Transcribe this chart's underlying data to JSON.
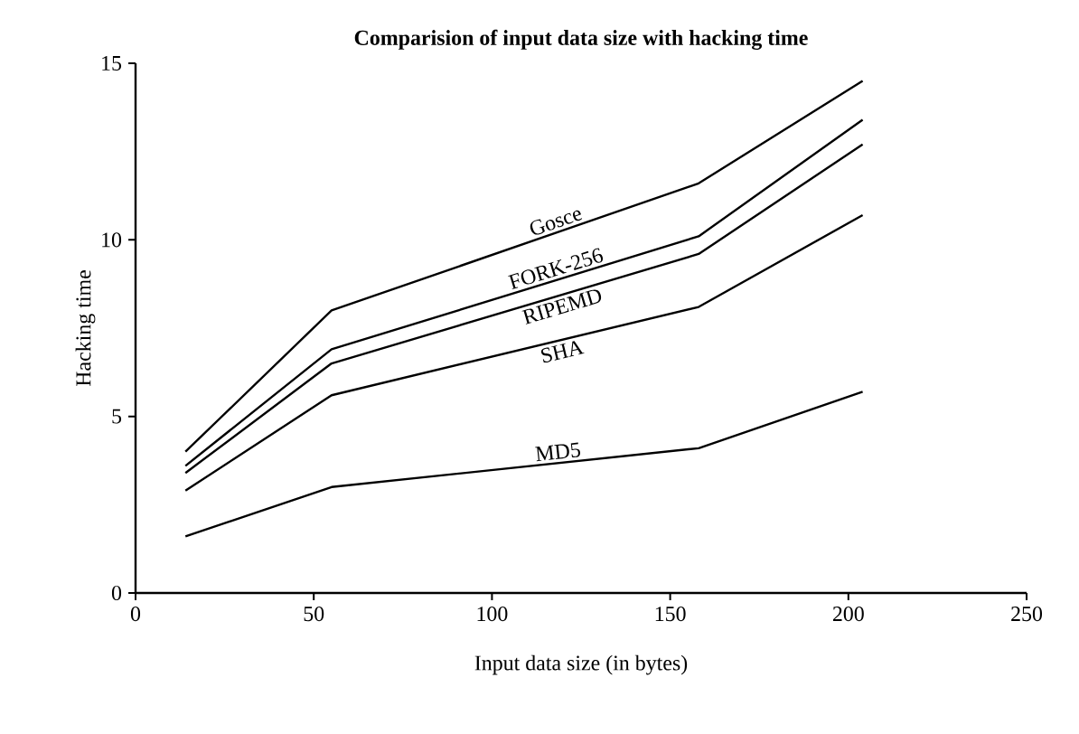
{
  "chart_data": {
    "type": "line",
    "title": "Comparision of input data size with hacking time",
    "xlabel": "Input data size (in bytes)",
    "ylabel": "Hacking time",
    "x": [
      14,
      55,
      158,
      204
    ],
    "series": [
      {
        "name": "Gosce",
        "color": "#000000",
        "values": [
          4.0,
          8.0,
          11.6,
          14.5
        ]
      },
      {
        "name": "FORK-256",
        "color": "#000000",
        "values": [
          3.6,
          6.9,
          10.1,
          13.4
        ]
      },
      {
        "name": "RIPEMD",
        "color": "#000000",
        "values": [
          3.4,
          6.5,
          9.6,
          12.7
        ]
      },
      {
        "name": "SHA",
        "color": "#000000",
        "values": [
          2.9,
          5.6,
          8.1,
          10.7
        ]
      },
      {
        "name": "MD5",
        "color": "#000000",
        "values": [
          1.6,
          3.0,
          4.1,
          5.7
        ]
      }
    ],
    "xlim": [
      0,
      250
    ],
    "xticks": [
      0,
      50,
      100,
      150,
      200,
      250
    ],
    "ylim": [
      0,
      15
    ],
    "yticks": [
      0,
      5,
      10,
      15
    ],
    "grid": false,
    "legend": false,
    "marker": "none",
    "line_style": "solid"
  }
}
